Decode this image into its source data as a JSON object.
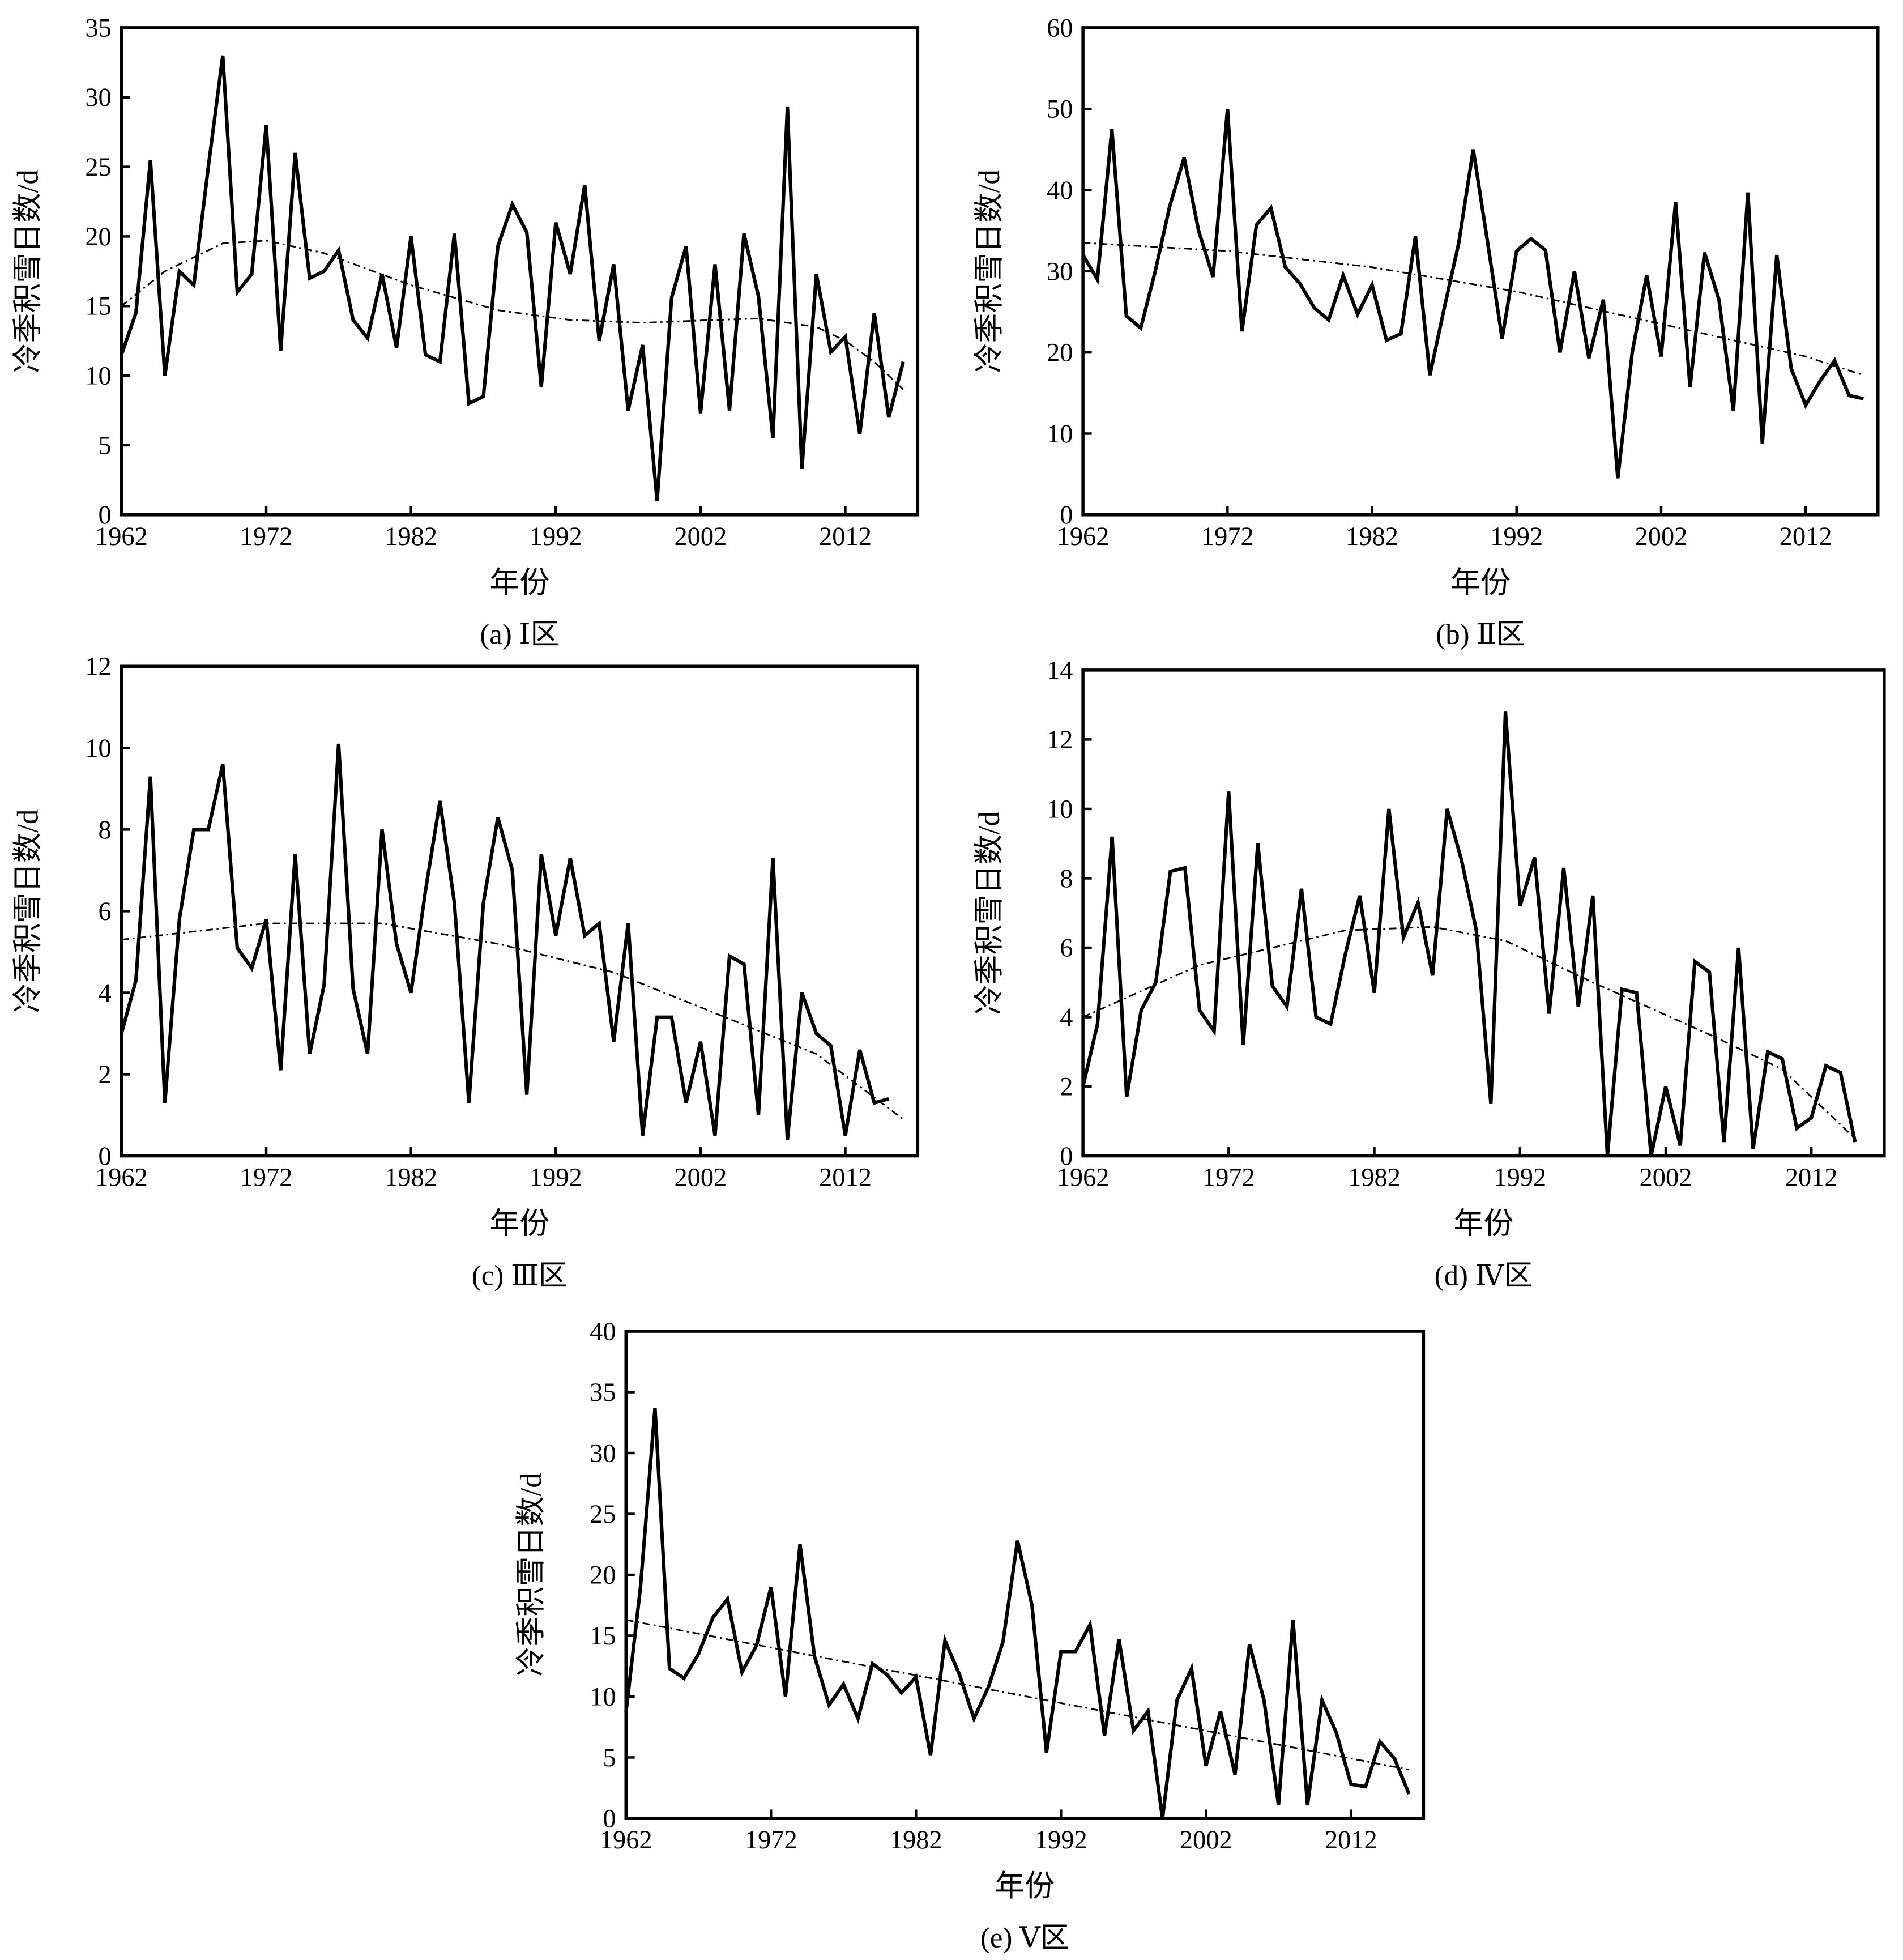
{
  "chart_data": [
    {
      "type": "line",
      "caption": "(a) Ⅰ区",
      "xlabel": "年份",
      "ylabel": "冷季积雪日数/d",
      "xlim": [
        1962,
        2017
      ],
      "ylim": [
        0,
        35
      ],
      "xticks": [
        1962,
        1972,
        1982,
        1992,
        2002,
        2012
      ],
      "yticks": [
        0,
        5,
        10,
        15,
        20,
        25,
        30,
        35
      ],
      "x_start": 1962,
      "values": [
        11.5,
        14.5,
        25.5,
        10,
        17.5,
        16.5,
        25,
        33,
        16,
        17.3,
        28,
        11.8,
        26,
        17,
        17.5,
        19,
        14,
        12.7,
        17.3,
        12,
        20,
        11.5,
        11,
        20.2,
        8,
        8.5,
        19.3,
        22.3,
        20.3,
        9.2,
        21,
        17.3,
        23.7,
        12.5,
        18,
        7.5,
        12.2,
        1,
        15.6,
        19.3,
        7.3,
        18,
        7.5,
        20.2,
        15.7,
        5.5,
        29.3,
        3.3,
        17.3,
        11.7,
        12.8,
        5.8,
        14.5,
        7,
        11
      ],
      "trend": {
        "x": [
          1962,
          1965,
          1969,
          1972,
          1976,
          1982,
          1988,
          1993,
          1998,
          2003,
          2006,
          2010,
          2012,
          2014,
          2016
        ],
        "y": [
          15,
          17.5,
          19.5,
          19.7,
          18.8,
          16.5,
          14.7,
          14,
          13.8,
          14,
          14.1,
          13.5,
          12.5,
          11,
          9
        ]
      }
    },
    {
      "type": "line",
      "caption": "(b) Ⅱ区",
      "xlabel": "年份",
      "ylabel": "冷季积雪日数/d",
      "xlim": [
        1962,
        2017
      ],
      "ylim": [
        0,
        60
      ],
      "xticks": [
        1962,
        1972,
        1982,
        1992,
        2002,
        2012
      ],
      "yticks": [
        0,
        10,
        20,
        30,
        40,
        50,
        60
      ],
      "x_start": 1962,
      "values": [
        32,
        29,
        47.5,
        24.5,
        23,
        30,
        38,
        44,
        35,
        29.3,
        50,
        22.6,
        35.7,
        37.8,
        30.5,
        28.5,
        25.5,
        24,
        29.5,
        24.7,
        28.3,
        21.5,
        22.3,
        34.3,
        17.2,
        25.5,
        33.5,
        45,
        33.5,
        21.7,
        32.5,
        34,
        32.6,
        20,
        30,
        19.3,
        26.5,
        4.5,
        20,
        29.5,
        19.5,
        38.5,
        15.7,
        32.3,
        26.5,
        12.8,
        39.7,
        8.8,
        32,
        18,
        13.5,
        16.5,
        19,
        14.7,
        14.3
      ],
      "trend": {
        "x": [
          1962,
          1972,
          1982,
          1992,
          2002,
          2012,
          2016
        ],
        "y": [
          33.5,
          32.5,
          30.5,
          27.5,
          23.5,
          19.5,
          17.2
        ]
      }
    },
    {
      "type": "line",
      "caption": "(c) Ⅲ区",
      "xlabel": "年份",
      "ylabel": "冷季积雪日数/d",
      "xlim": [
        1962,
        2017
      ],
      "ylim": [
        0,
        12
      ],
      "xticks": [
        1962,
        1972,
        1982,
        1992,
        2002,
        2012
      ],
      "yticks": [
        0,
        2,
        4,
        6,
        8,
        10,
        12
      ],
      "x_start": 1962,
      "values": [
        3,
        4.3,
        9.3,
        1.3,
        5.8,
        8,
        8,
        9.6,
        5.1,
        4.6,
        5.8,
        2.1,
        7.4,
        2.5,
        4.2,
        10.1,
        4.1,
        2.5,
        8,
        5.2,
        4,
        6.5,
        8.7,
        6.2,
        1.3,
        6.2,
        8.3,
        7,
        1.5,
        7.4,
        5.4,
        7.3,
        5.4,
        5.7,
        2.8,
        5.7,
        0.5,
        3.4,
        3.4,
        1.3,
        2.8,
        0.5,
        4.9,
        4.7,
        1,
        7.3,
        0.4,
        4,
        3,
        2.7,
        0.5,
        2.6,
        1.3,
        1.4
      ],
      "trend": {
        "x": [
          1962,
          1972,
          1980,
          1988,
          1996,
          2003,
          2010,
          2016
        ],
        "y": [
          5.3,
          5.7,
          5.7,
          5.2,
          4.5,
          3.5,
          2.5,
          0.9
        ]
      }
    },
    {
      "type": "line",
      "caption": "(d) Ⅳ区",
      "xlabel": "年份",
      "ylabel": "冷季积雪日数/d",
      "xlim": [
        1962,
        2017
      ],
      "ylim": [
        0,
        14
      ],
      "xticks": [
        1962,
        1972,
        1982,
        1992,
        2002,
        2012
      ],
      "yticks": [
        0,
        2,
        4,
        6,
        8,
        10,
        12,
        14
      ],
      "x_start": 1962,
      "values": [
        2,
        3.8,
        9.2,
        1.7,
        4.2,
        5,
        8.2,
        8.3,
        4.2,
        3.6,
        10.5,
        3.2,
        9,
        4.9,
        4.3,
        7.7,
        4,
        3.8,
        5.8,
        7.5,
        4.7,
        10,
        6.3,
        7.3,
        5.2,
        10,
        8.5,
        6.5,
        1.5,
        12.8,
        7.2,
        8.6,
        4.1,
        8.3,
        4.3,
        7.5,
        0,
        4.8,
        4.7,
        0,
        2,
        0.3,
        5.6,
        5.3,
        0.4,
        6,
        0.2,
        3,
        2.8,
        0.8,
        1.1,
        2.6,
        2.4,
        0.4
      ],
      "trend": {
        "x": [
          1962,
          1970,
          1980,
          1986,
          1991,
          1997,
          2005,
          2010,
          2015
        ],
        "y": [
          4,
          5.5,
          6.5,
          6.6,
          6.2,
          5,
          3.5,
          2.5,
          0.5
        ]
      }
    },
    {
      "type": "line",
      "caption": "(e) Ⅴ区",
      "xlabel": "年份",
      "ylabel": "冷季积雪日数/d",
      "xlim": [
        1962,
        2017
      ],
      "ylim": [
        0,
        40
      ],
      "xticks": [
        1962,
        1972,
        1982,
        1992,
        2002,
        2012
      ],
      "yticks": [
        0,
        5,
        10,
        15,
        20,
        25,
        30,
        35,
        40
      ],
      "x_start": 1962,
      "values": [
        8.7,
        19,
        33.7,
        12.3,
        11.5,
        13.5,
        16.5,
        18,
        12,
        14.2,
        19,
        10,
        22.5,
        13.3,
        9.3,
        11,
        8.2,
        12.7,
        11.8,
        10.3,
        11.6,
        5.2,
        14.6,
        11.8,
        8.2,
        10.8,
        14.5,
        22.8,
        17.5,
        5.4,
        13.7,
        13.7,
        15.9,
        6.8,
        14.7,
        7.2,
        8.8,
        0,
        9.7,
        12.3,
        4.3,
        8.8,
        3.6,
        14.3,
        9.7,
        1.1,
        16.3,
        1.1,
        9.7,
        7,
        2.8,
        2.6,
        6.3,
        4.9,
        2
      ],
      "trend": {
        "x": [
          1962,
          2016
        ],
        "y": [
          16.3,
          4
        ]
      }
    }
  ]
}
